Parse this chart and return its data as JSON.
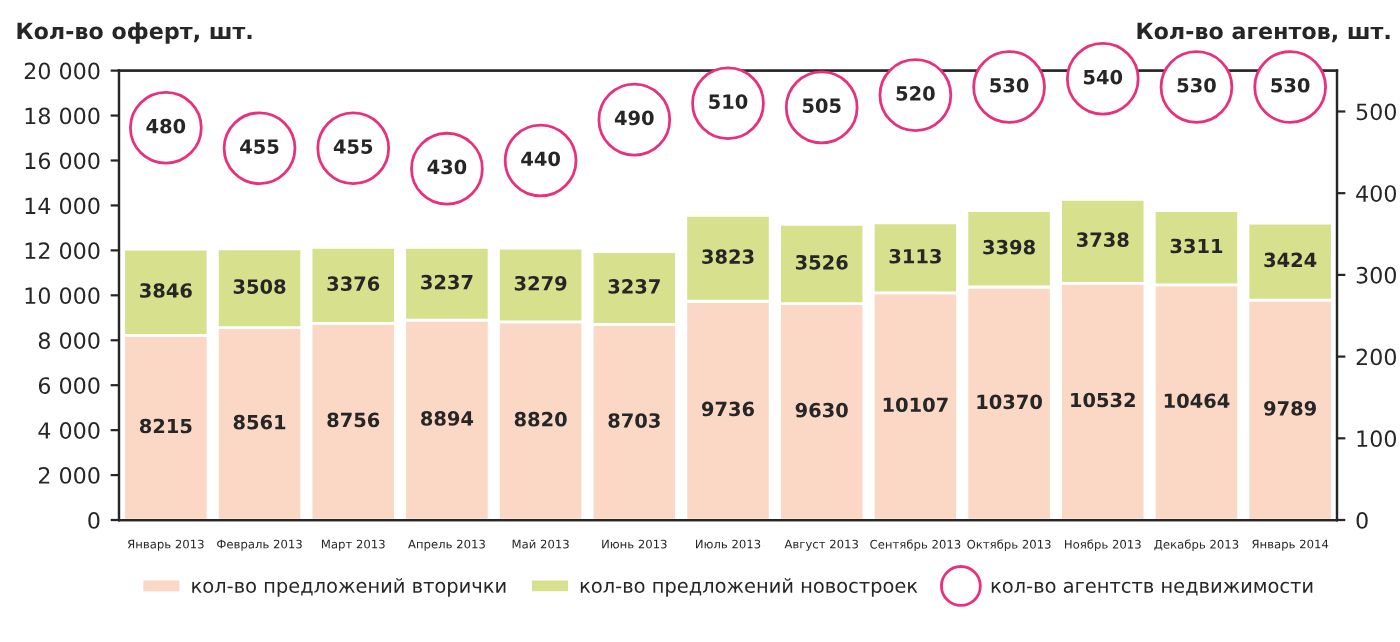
{
  "chart_data": {
    "type": "bar",
    "stacked": true,
    "ylabel": "Кол-во оферт, шт.",
    "y2label": "Кол-во агентов, шт.",
    "categories": [
      "Январь 2013",
      "Февраль 2013",
      "Март 2013",
      "Апрель 2013",
      "Май 2013",
      "Июнь 2013",
      "Июль 2013",
      "Август 2013",
      "Сентябрь 2013",
      "Октябрь 2013",
      "Ноябрь 2013",
      "Декабрь 2013",
      "Январь 2014"
    ],
    "series": [
      {
        "name": "кол-во предложений вторички",
        "color": "#fbd7c6",
        "values": [
          8215,
          8561,
          8756,
          8894,
          8820,
          8703,
          9736,
          9630,
          10107,
          10370,
          10532,
          10464,
          9789
        ]
      },
      {
        "name": "кол-во предложений новостроек",
        "color": "#d7e08c",
        "values": [
          3846,
          3508,
          3376,
          3237,
          3279,
          3237,
          3823,
          3526,
          3113,
          3398,
          3738,
          3311,
          3424
        ]
      },
      {
        "name": "кол-во агентств недвижимости",
        "type": "scatter",
        "axis": "y2",
        "color": "#e8307d",
        "values": [
          480,
          455,
          455,
          430,
          440,
          490,
          510,
          505,
          520,
          530,
          540,
          530,
          530
        ]
      }
    ],
    "ylim": [
      0,
      20000
    ],
    "yticks": [
      {
        "value": 0,
        "label": "0"
      },
      {
        "value": 2000,
        "label": "2 000"
      },
      {
        "value": 4000,
        "label": "4 000"
      },
      {
        "value": 6000,
        "label": "6 000"
      },
      {
        "value": 8000,
        "label": "8 000"
      },
      {
        "value": 10000,
        "label": "10 000"
      },
      {
        "value": 12000,
        "label": "12 000"
      },
      {
        "value": 14000,
        "label": "14 000"
      },
      {
        "value": 16000,
        "label": "16 000"
      },
      {
        "value": 18000,
        "label": "18 000"
      },
      {
        "value": 20000,
        "label": "20 000"
      }
    ],
    "y2lim": [
      0,
      550
    ],
    "y2ticks": [
      0,
      100,
      200,
      300,
      400,
      500
    ],
    "data_labels": true,
    "legend": "bottom",
    "marker": "circle",
    "grid": false
  }
}
